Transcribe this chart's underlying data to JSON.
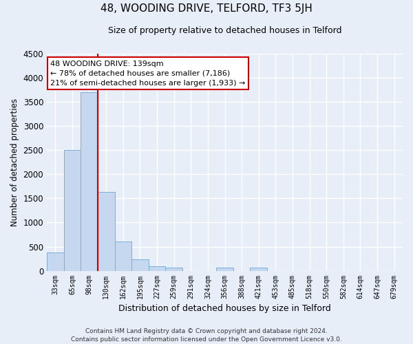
{
  "title": "48, WOODING DRIVE, TELFORD, TF3 5JH",
  "subtitle": "Size of property relative to detached houses in Telford",
  "xlabel": "Distribution of detached houses by size in Telford",
  "ylabel": "Number of detached properties",
  "bar_labels": [
    "33sqm",
    "65sqm",
    "98sqm",
    "130sqm",
    "162sqm",
    "195sqm",
    "227sqm",
    "259sqm",
    "291sqm",
    "324sqm",
    "356sqm",
    "388sqm",
    "421sqm",
    "453sqm",
    "485sqm",
    "518sqm",
    "550sqm",
    "582sqm",
    "614sqm",
    "647sqm",
    "679sqm"
  ],
  "bar_values": [
    380,
    2510,
    3700,
    1630,
    600,
    240,
    100,
    60,
    0,
    0,
    60,
    0,
    60,
    0,
    0,
    0,
    0,
    0,
    0,
    0,
    0
  ],
  "bar_color": "#c5d8ef",
  "bar_edge_color": "#7bafd4",
  "vline_color": "#cc0000",
  "ylim": [
    0,
    4500
  ],
  "yticks": [
    0,
    500,
    1000,
    1500,
    2000,
    2500,
    3000,
    3500,
    4000,
    4500
  ],
  "annotation_title": "48 WOODING DRIVE: 139sqm",
  "annotation_line1": "← 78% of detached houses are smaller (7,186)",
  "annotation_line2": "21% of semi-detached houses are larger (1,933) →",
  "annotation_box_color": "#ffffff",
  "annotation_box_edge": "#cc0000",
  "footer_line1": "Contains HM Land Registry data © Crown copyright and database right 2024.",
  "footer_line2": "Contains public sector information licensed under the Open Government Licence v3.0.",
  "background_color": "#e8eef8",
  "plot_background": "#e8eef8",
  "grid_color": "#ffffff"
}
